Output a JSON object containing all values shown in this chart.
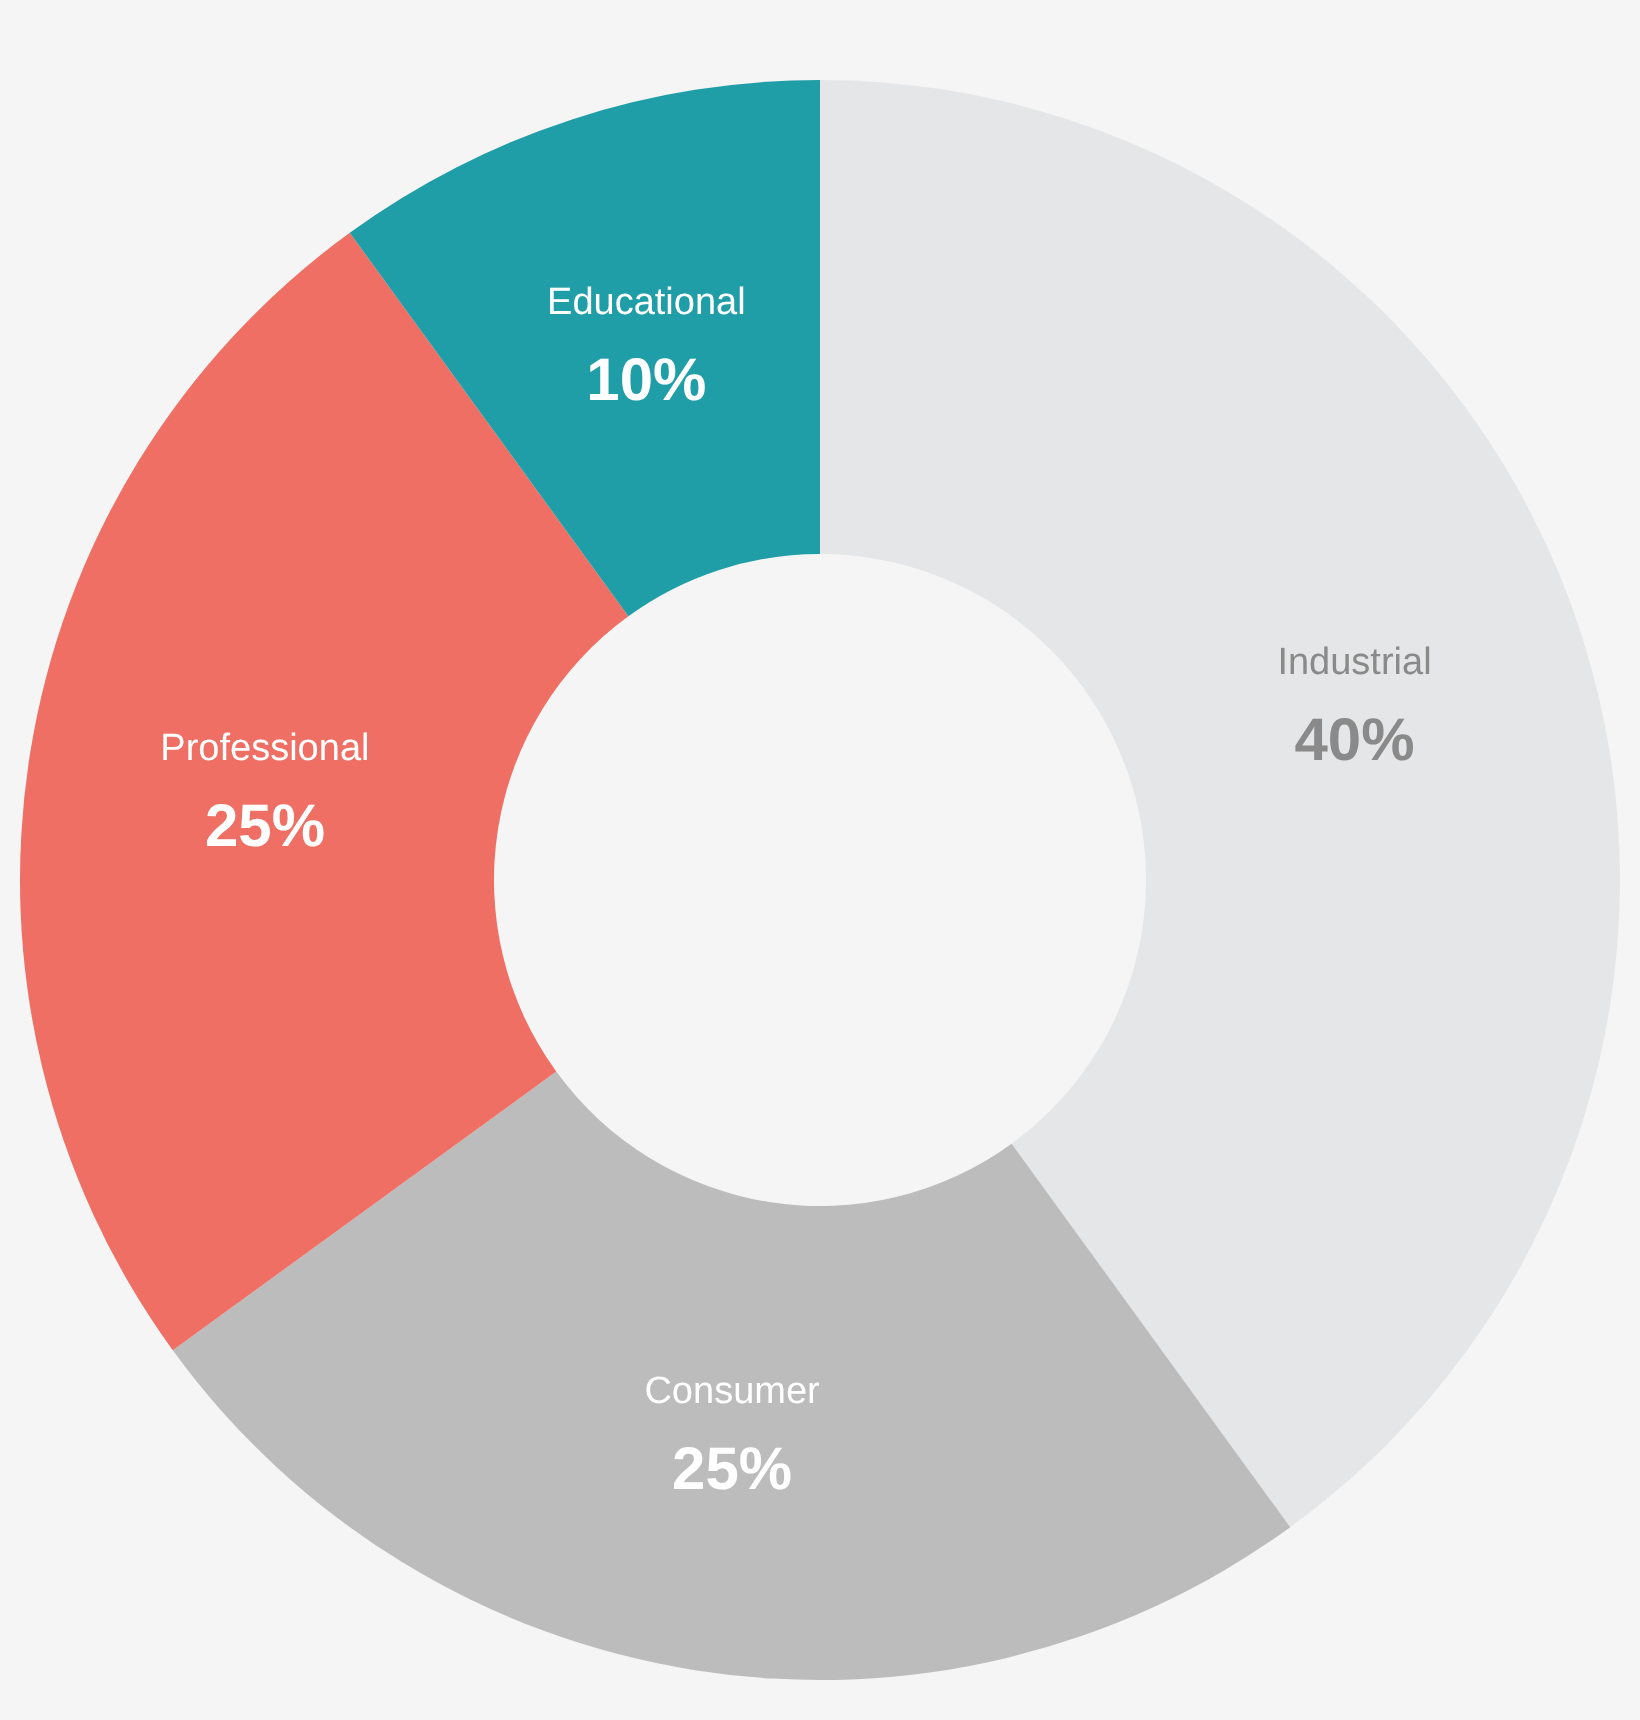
{
  "chart_data": {
    "type": "donut",
    "categories": [
      "Industrial",
      "Consumer",
      "Professional",
      "Educational"
    ],
    "values": [
      40,
      25,
      25,
      10
    ],
    "colors": [
      "#e5e6e7",
      "#bbbcbb",
      "#ef6f64",
      "#1f9ea7"
    ],
    "value_labels": [
      "40%",
      "25%",
      "25%",
      "10%"
    ]
  }
}
